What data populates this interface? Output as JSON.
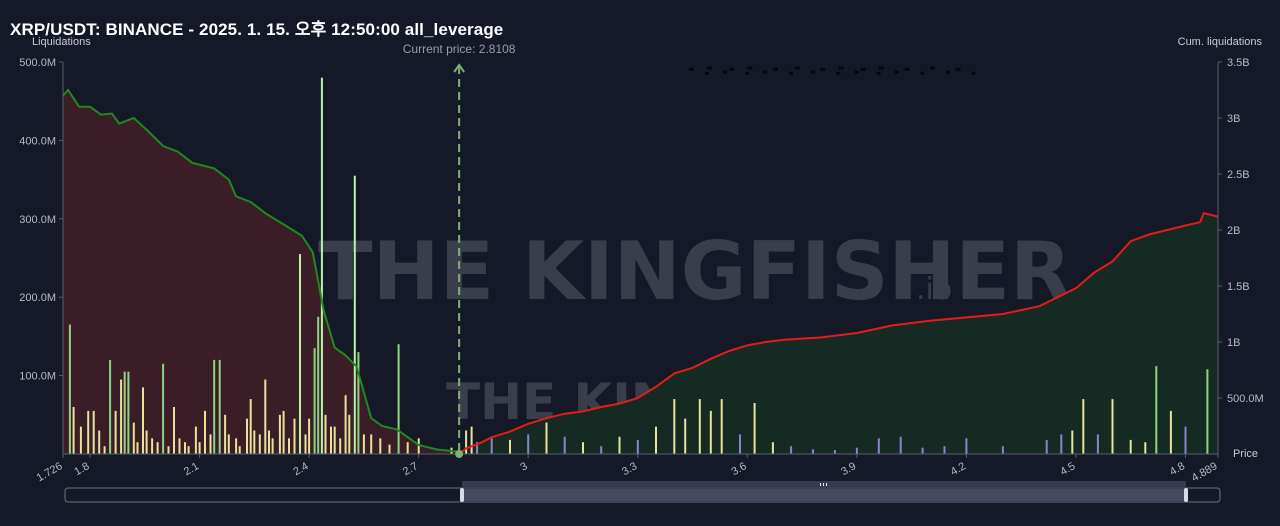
{
  "title": "XRP/USDT: BINANCE - 2025. 1. 15. 오후 12:50:00 all_leverage",
  "watermark": {
    "text": "THE KINGFISHER",
    "suffix": ".IO"
  },
  "colors": {
    "background": "#151826",
    "long_area": "#3a1d27",
    "short_area": "#162a24",
    "long_cum_line": "#1f8a1f",
    "short_cum_line": "#e41b1b",
    "bar_low": "#e8e29a",
    "bar_mid": "#8fd485",
    "bar_high": "#b9f5a8",
    "bar_purple": "#8b84c9",
    "current_price_line": "#7fb07a"
  },
  "chart_data": {
    "type": "bar",
    "current_price": 2.8108,
    "current_price_label": "Current price: 2.8108",
    "x_range": [
      1.726,
      4.889
    ],
    "x_ticks": [
      "1.726",
      "1.8",
      "2.1",
      "2.4",
      "2.7",
      "3",
      "3.3",
      "3.6",
      "3.9",
      "4.2",
      "4.5",
      "4.8",
      "4.889"
    ],
    "left_axis": {
      "label": "Liquidations",
      "ticks": [
        "500.0M",
        "400.0M",
        "300.0M",
        "200.0M",
        "100.0M"
      ],
      "range": [
        0,
        500000000
      ]
    },
    "right_axis": {
      "label": "Cum. liquidations",
      "ticks": [
        "3.5B",
        "3B",
        "2.5B",
        "2B",
        "1.5B",
        "1B",
        "500.0M"
      ],
      "range": [
        0,
        3500000000
      ]
    },
    "x_axis_label": "Price",
    "liquidation_bars": [
      [
        1.745,
        165
      ],
      [
        1.755,
        60
      ],
      [
        1.775,
        35
      ],
      [
        1.795,
        55
      ],
      [
        1.81,
        55
      ],
      [
        1.825,
        30
      ],
      [
        1.84,
        10
      ],
      [
        1.855,
        120
      ],
      [
        1.87,
        55
      ],
      [
        1.885,
        95
      ],
      [
        1.895,
        105
      ],
      [
        1.905,
        105
      ],
      [
        1.92,
        40
      ],
      [
        1.93,
        15
      ],
      [
        1.945,
        85
      ],
      [
        1.955,
        30
      ],
      [
        1.97,
        20
      ],
      [
        1.985,
        15
      ],
      [
        2.0,
        115
      ],
      [
        2.015,
        10
      ],
      [
        2.03,
        60
      ],
      [
        2.045,
        20
      ],
      [
        2.06,
        15
      ],
      [
        2.07,
        10
      ],
      [
        2.09,
        35
      ],
      [
        2.1,
        15
      ],
      [
        2.115,
        55
      ],
      [
        2.13,
        25
      ],
      [
        2.14,
        120
      ],
      [
        2.155,
        120
      ],
      [
        2.17,
        50
      ],
      [
        2.18,
        25
      ],
      [
        2.2,
        20
      ],
      [
        2.21,
        10
      ],
      [
        2.23,
        45
      ],
      [
        2.24,
        70
      ],
      [
        2.25,
        30
      ],
      [
        2.265,
        25
      ],
      [
        2.28,
        95
      ],
      [
        2.29,
        30
      ],
      [
        2.3,
        20
      ],
      [
        2.32,
        50
      ],
      [
        2.33,
        55
      ],
      [
        2.345,
        20
      ],
      [
        2.36,
        45
      ],
      [
        2.375,
        255
      ],
      [
        2.39,
        25
      ],
      [
        2.4,
        45
      ],
      [
        2.415,
        135
      ],
      [
        2.425,
        175
      ],
      [
        2.435,
        480
      ],
      [
        2.445,
        50
      ],
      [
        2.46,
        35
      ],
      [
        2.47,
        35
      ],
      [
        2.485,
        20
      ],
      [
        2.5,
        75
      ],
      [
        2.51,
        50
      ],
      [
        2.525,
        355
      ],
      [
        2.535,
        130
      ],
      [
        2.55,
        25
      ],
      [
        2.57,
        25
      ],
      [
        2.595,
        20
      ],
      [
        2.62,
        12
      ],
      [
        2.645,
        140
      ],
      [
        2.67,
        15
      ],
      [
        2.7,
        20
      ],
      [
        2.79,
        8
      ],
      [
        2.83,
        30
      ],
      [
        2.845,
        35
      ],
      [
        2.86,
        15
      ],
      [
        2.9,
        20
      ],
      [
        2.95,
        18
      ],
      [
        3.0,
        25
      ],
      [
        3.05,
        40
      ],
      [
        3.1,
        22
      ],
      [
        3.15,
        15
      ],
      [
        3.2,
        10
      ],
      [
        3.25,
        22
      ],
      [
        3.3,
        18
      ],
      [
        3.35,
        35
      ],
      [
        3.4,
        70
      ],
      [
        3.43,
        45
      ],
      [
        3.47,
        70
      ],
      [
        3.5,
        55
      ],
      [
        3.53,
        70
      ],
      [
        3.58,
        25
      ],
      [
        3.62,
        65
      ],
      [
        3.67,
        15
      ],
      [
        3.72,
        10
      ],
      [
        3.78,
        6
      ],
      [
        3.84,
        5
      ],
      [
        3.9,
        8
      ],
      [
        3.96,
        20
      ],
      [
        4.02,
        22
      ],
      [
        4.08,
        8
      ],
      [
        4.14,
        10
      ],
      [
        4.2,
        20
      ],
      [
        4.3,
        10
      ],
      [
        4.42,
        18
      ],
      [
        4.46,
        25
      ],
      [
        4.49,
        30
      ],
      [
        4.52,
        70
      ],
      [
        4.56,
        25
      ],
      [
        4.6,
        70
      ],
      [
        4.65,
        18
      ],
      [
        4.69,
        15
      ],
      [
        4.72,
        112
      ],
      [
        4.76,
        55
      ],
      [
        4.8,
        35
      ],
      [
        4.86,
        108
      ]
    ],
    "long_cumulative": [
      [
        1.726,
        3.2
      ],
      [
        1.74,
        3.25
      ],
      [
        1.77,
        3.1
      ],
      [
        1.8,
        3.1
      ],
      [
        1.83,
        3.03
      ],
      [
        1.86,
        3.04
      ],
      [
        1.88,
        2.95
      ],
      [
        1.92,
        3.0
      ],
      [
        1.96,
        2.88
      ],
      [
        2.0,
        2.75
      ],
      [
        2.04,
        2.7
      ],
      [
        2.08,
        2.6
      ],
      [
        2.14,
        2.55
      ],
      [
        2.18,
        2.45
      ],
      [
        2.2,
        2.3
      ],
      [
        2.24,
        2.25
      ],
      [
        2.28,
        2.15
      ],
      [
        2.33,
        2.05
      ],
      [
        2.38,
        1.95
      ],
      [
        2.41,
        1.8
      ],
      [
        2.44,
        1.28
      ],
      [
        2.47,
        0.95
      ],
      [
        2.5,
        0.88
      ],
      [
        2.53,
        0.78
      ],
      [
        2.57,
        0.32
      ],
      [
        2.6,
        0.25
      ],
      [
        2.64,
        0.22
      ],
      [
        2.7,
        0.08
      ],
      [
        2.75,
        0.04
      ],
      [
        2.8108,
        0.02
      ]
    ],
    "short_cumulative": [
      [
        2.8108,
        0.0
      ],
      [
        2.83,
        0.05
      ],
      [
        2.87,
        0.1
      ],
      [
        2.9,
        0.15
      ],
      [
        2.95,
        0.2
      ],
      [
        3.0,
        0.27
      ],
      [
        3.05,
        0.32
      ],
      [
        3.1,
        0.36
      ],
      [
        3.15,
        0.38
      ],
      [
        3.2,
        0.42
      ],
      [
        3.25,
        0.45
      ],
      [
        3.3,
        0.5
      ],
      [
        3.35,
        0.6
      ],
      [
        3.4,
        0.72
      ],
      [
        3.45,
        0.77
      ],
      [
        3.5,
        0.85
      ],
      [
        3.55,
        0.92
      ],
      [
        3.6,
        0.97
      ],
      [
        3.65,
        1.0
      ],
      [
        3.7,
        1.02
      ],
      [
        3.8,
        1.04
      ],
      [
        3.9,
        1.08
      ],
      [
        4.0,
        1.15
      ],
      [
        4.1,
        1.19
      ],
      [
        4.2,
        1.22
      ],
      [
        4.3,
        1.25
      ],
      [
        4.4,
        1.32
      ],
      [
        4.45,
        1.4
      ],
      [
        4.5,
        1.48
      ],
      [
        4.55,
        1.62
      ],
      [
        4.6,
        1.72
      ],
      [
        4.65,
        1.9
      ],
      [
        4.7,
        1.96
      ],
      [
        4.75,
        2.0
      ],
      [
        4.8,
        2.04
      ],
      [
        4.84,
        2.07
      ],
      [
        4.85,
        2.15
      ],
      [
        4.889,
        2.12
      ]
    ],
    "top_scatter": [
      [
        3.44,
        0.985
      ],
      [
        3.49,
        0.995
      ],
      [
        3.55,
        0.985
      ],
      [
        3.6,
        0.995
      ],
      [
        3.67,
        0.985
      ],
      [
        3.73,
        0.995
      ],
      [
        3.8,
        0.985
      ],
      [
        3.85,
        0.995
      ],
      [
        3.91,
        0.985
      ],
      [
        3.96,
        0.995
      ],
      [
        4.03,
        0.985
      ],
      [
        4.1,
        0.995
      ],
      [
        4.17,
        0.985
      ]
    ]
  }
}
